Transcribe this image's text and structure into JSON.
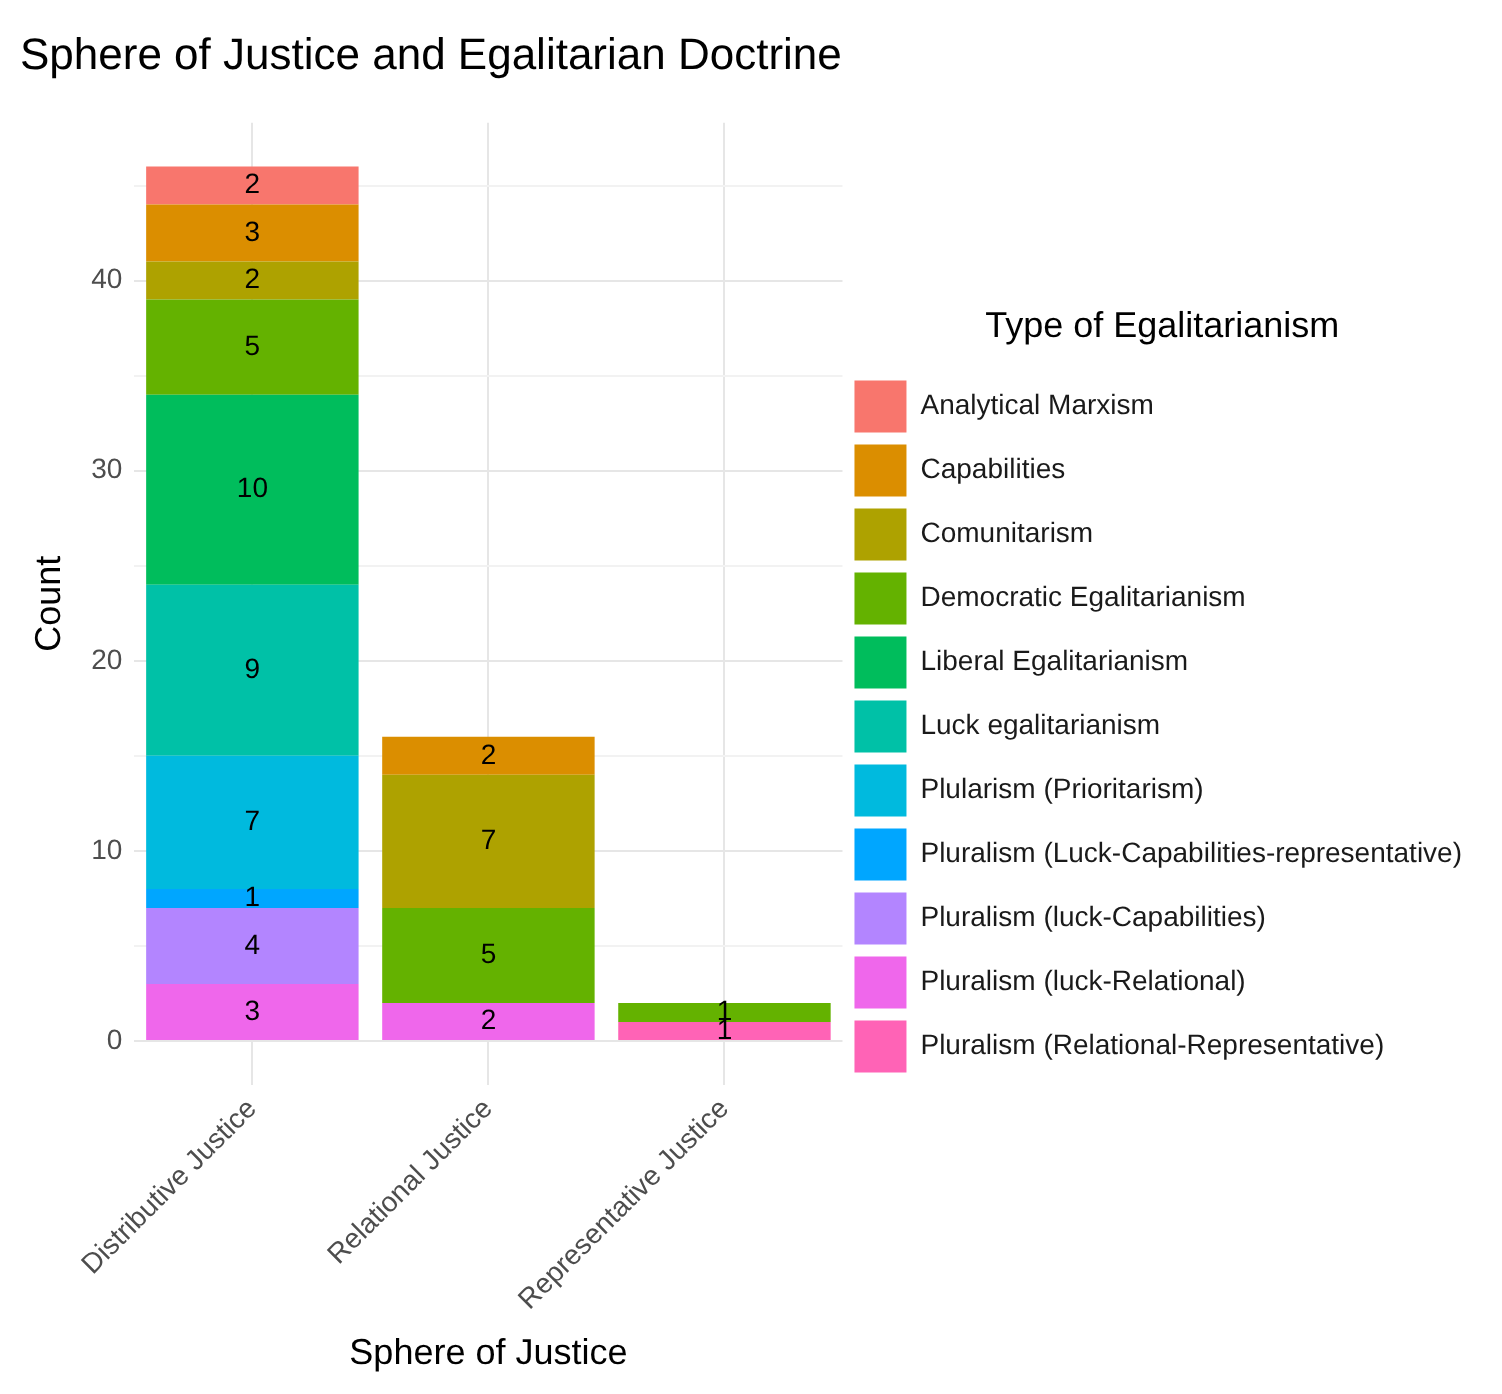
{
  "chart_data": {
    "type": "bar",
    "stacked": true,
    "title": "Sphere of Justice and Egalitarian Doctrine",
    "xlabel": "Sphere of Justice",
    "ylabel": "Count",
    "legend_title": "Type of Egalitarianism",
    "legend": "right",
    "grid": true,
    "data_labels": true,
    "categories": [
      "Distributive Justice",
      "Relational Justice",
      "Representative Justice"
    ],
    "ylim": [
      -2.3,
      48.3
    ],
    "yticks": [
      0,
      {
        "value": 5,
        "label": null
      },
      10,
      {
        "value": 15,
        "label": null
      },
      20,
      {
        "value": 25,
        "label": null
      },
      30,
      {
        "value": 35,
        "label": null
      },
      40,
      {
        "value": 45,
        "label": null
      }
    ],
    "series": [
      {
        "name": "Pluralism (Relational-Representative)",
        "color": "#ff63b6",
        "values": [
          null,
          null,
          1
        ]
      },
      {
        "name": "Pluralism (luck-Relational)",
        "color": "#ef67eb",
        "values": [
          3,
          2,
          null
        ]
      },
      {
        "name": "Pluralism (luck-Capabilities)",
        "color": "#b385ff",
        "values": [
          4,
          null,
          null
        ]
      },
      {
        "name": "Pluralism (Luck-Capabilities-representative)",
        "color": "#00a6ff",
        "values": [
          1,
          null,
          null
        ]
      },
      {
        "name": "Plularism (Prioritarism)",
        "color": "#00bade",
        "values": [
          7,
          null,
          null
        ]
      },
      {
        "name": "Luck egalitarianism",
        "color": "#00c1a7",
        "values": [
          9,
          null,
          null
        ]
      },
      {
        "name": "Liberal Egalitarianism",
        "color": "#00bd5c",
        "values": [
          10,
          null,
          null
        ]
      },
      {
        "name": "Democratic Egalitarianism",
        "color": "#64b200",
        "values": [
          5,
          5,
          1
        ]
      },
      {
        "name": "Comunitarism",
        "color": "#aea200",
        "values": [
          2,
          7,
          null
        ]
      },
      {
        "name": "Capabilities",
        "color": "#db8e00",
        "values": [
          3,
          2,
          null
        ]
      },
      {
        "name": "Analytical Marxism",
        "color": "#f8766d",
        "values": [
          2,
          null,
          null
        ]
      }
    ]
  }
}
